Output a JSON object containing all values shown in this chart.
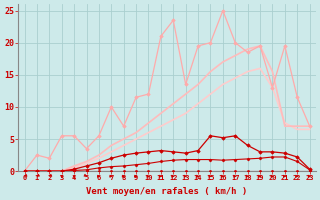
{
  "title": "",
  "xlabel": "Vent moyen/en rafales ( km/h )",
  "x": [
    0,
    1,
    2,
    3,
    4,
    5,
    6,
    7,
    8,
    9,
    10,
    11,
    12,
    13,
    14,
    15,
    16,
    17,
    18,
    19,
    20,
    21,
    22,
    23
  ],
  "background_color": "#cdeaea",
  "grid_color": "#aacfcf",
  "lines": [
    {
      "y": [
        0,
        0,
        0,
        0,
        0,
        0,
        0,
        0,
        0,
        0,
        0,
        0,
        0,
        0,
        0,
        0,
        0,
        0,
        0,
        0,
        0,
        0,
        0,
        0
      ],
      "color": "#cc0000",
      "lw": 0.8,
      "marker": "o",
      "ms": 1.5,
      "zorder": 5
    },
    {
      "y": [
        0,
        0,
        0,
        0,
        0.1,
        0.2,
        0.5,
        0.7,
        0.8,
        1.0,
        1.2,
        1.5,
        1.7,
        1.8,
        1.8,
        1.8,
        1.7,
        1.8,
        1.9,
        2.0,
        2.2,
        2.2,
        1.5,
        0.2
      ],
      "color": "#cc0000",
      "lw": 0.8,
      "marker": "D",
      "ms": 1.5,
      "zorder": 5
    },
    {
      "y": [
        0,
        0,
        0,
        0,
        0.3,
        0.8,
        1.3,
        2.0,
        2.5,
        2.8,
        3.0,
        3.2,
        3.0,
        2.8,
        3.2,
        5.5,
        5.2,
        5.5,
        4.0,
        3.0,
        3.0,
        2.8,
        2.2,
        0.3
      ],
      "color": "#cc0000",
      "lw": 0.9,
      "marker": "D",
      "ms": 1.8,
      "zorder": 4
    },
    {
      "y": [
        0,
        2.5,
        2.0,
        5.5,
        5.5,
        3.5,
        5.5,
        10.0,
        7.0,
        11.5,
        12.0,
        21.0,
        23.5,
        13.5,
        19.5,
        20.0,
        25.0,
        20.0,
        18.5,
        19.5,
        13.0,
        19.5,
        11.5,
        7.0
      ],
      "color": "#ffaaaa",
      "lw": 0.9,
      "marker": "D",
      "ms": 1.8,
      "zorder": 3
    },
    {
      "y": [
        0,
        0,
        0,
        0,
        0.8,
        1.5,
        2.5,
        4.0,
        5.0,
        6.0,
        7.5,
        9.0,
        10.5,
        12.0,
        13.5,
        15.5,
        17.0,
        18.0,
        19.0,
        19.5,
        15.5,
        7.0,
        7.0,
        7.0
      ],
      "color": "#ffbbbb",
      "lw": 1.2,
      "marker": null,
      "ms": 0,
      "zorder": 2
    },
    {
      "y": [
        0,
        0,
        0,
        0,
        0.5,
        1.2,
        2.0,
        3.0,
        4.0,
        5.0,
        6.0,
        7.0,
        8.0,
        9.0,
        10.5,
        12.0,
        13.5,
        14.5,
        15.5,
        16.0,
        13.0,
        7.5,
        6.5,
        6.5
      ],
      "color": "#ffcccc",
      "lw": 1.2,
      "marker": null,
      "ms": 0,
      "zorder": 1
    }
  ],
  "arrow_dirs": [
    4,
    4,
    4,
    3,
    3,
    3,
    2,
    2,
    2,
    2,
    2,
    2,
    2,
    2,
    2,
    2,
    2,
    2,
    2,
    2,
    2,
    2,
    2,
    2
  ],
  "ylim": [
    0,
    26
  ],
  "xlim": [
    -0.5,
    23.5
  ]
}
